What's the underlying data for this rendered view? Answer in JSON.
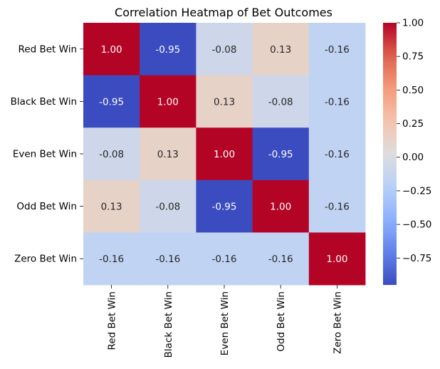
{
  "chart_data": {
    "type": "heatmap",
    "title": "Correlation Heatmap of Bet Outcomes",
    "rows": [
      "Red Bet Win",
      "Black Bet Win",
      "Even Bet Win",
      "Odd Bet Win",
      "Zero Bet Win"
    ],
    "columns": [
      "Red Bet Win",
      "Black Bet Win",
      "Even Bet Win",
      "Odd Bet Win",
      "Zero Bet Win"
    ],
    "values": [
      [
        1.0,
        -0.95,
        -0.08,
        0.13,
        -0.16
      ],
      [
        -0.95,
        1.0,
        0.13,
        -0.08,
        -0.16
      ],
      [
        -0.08,
        0.13,
        1.0,
        -0.95,
        -0.16
      ],
      [
        0.13,
        -0.08,
        -0.95,
        1.0,
        -0.16
      ],
      [
        -0.16,
        -0.16,
        -0.16,
        -0.16,
        1.0
      ]
    ],
    "annotation_format": "0.00",
    "colormap": "coolwarm",
    "colorbar": {
      "range": [
        -0.95,
        1.0
      ],
      "ticks": [
        1.0,
        0.75,
        0.5,
        0.25,
        0.0,
        -0.25,
        -0.5,
        -0.75
      ],
      "tick_labels": [
        "1.00",
        "0.75",
        "0.50",
        "0.25",
        "0.00",
        "−0.25",
        "−0.50",
        "−0.75"
      ]
    },
    "grid": false
  }
}
